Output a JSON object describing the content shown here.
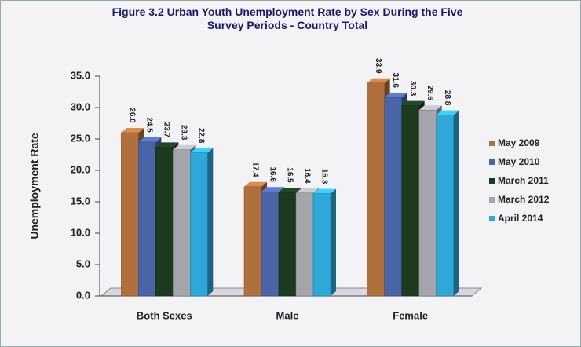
{
  "chart_data": {
    "type": "bar",
    "title": "Figure 3.2 Urban Youth Unemployment Rate by Sex During the Five Survey Periods - Country Total",
    "y_label": "Unemployment Rate",
    "categories": [
      "Both Sexes",
      "Male",
      "Female"
    ],
    "series": [
      {
        "name": "May 2009",
        "color": "#b0703e",
        "values": [
          26.0,
          17.4,
          33.9
        ],
        "value_labels": [
          "26.0",
          "17.4",
          "33.9"
        ]
      },
      {
        "name": "May 2010",
        "color": "#4a64a8",
        "values": [
          24.5,
          16.6,
          31.6
        ],
        "value_labels": [
          "24.5",
          "16.6",
          "31.6"
        ]
      },
      {
        "name": "March 2011",
        "color": "#1b3a1e",
        "values": [
          23.7,
          16.5,
          30.3
        ],
        "value_labels": [
          "23.7",
          "16.5",
          "30.3"
        ]
      },
      {
        "name": "March 2012",
        "color": "#a4a4ac",
        "values": [
          23.3,
          16.4,
          29.6
        ],
        "value_labels": [
          "23.3",
          "16.4",
          "29.6"
        ]
      },
      {
        "name": "April 2014",
        "color": "#2ea8d8",
        "values": [
          22.8,
          16.3,
          28.8
        ],
        "value_labels": [
          "22.8",
          "16.3",
          "28.8"
        ]
      }
    ],
    "ylim": [
      0,
      35
    ],
    "yticks": [
      {
        "value": 0,
        "label": "0.0"
      },
      {
        "value": 5,
        "label": "5.0"
      },
      {
        "value": 10,
        "label": "10.0"
      },
      {
        "value": 15,
        "label": "15.0"
      },
      {
        "value": 20,
        "label": "20.0"
      },
      {
        "value": 25,
        "label": "25.0"
      },
      {
        "value": 30,
        "label": "30.0"
      },
      {
        "value": 35,
        "label": "35.0"
      }
    ],
    "legend": "right"
  }
}
